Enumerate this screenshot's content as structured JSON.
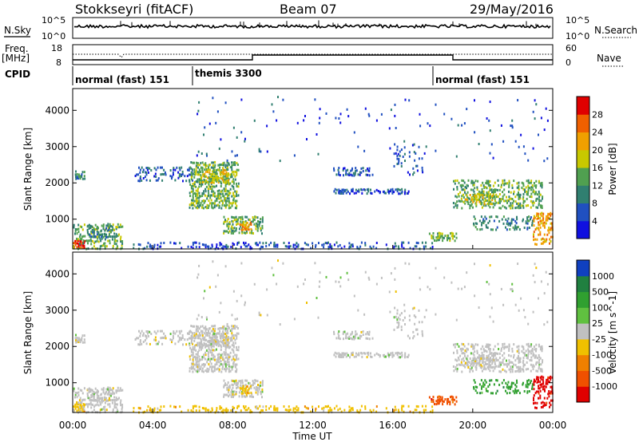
{
  "header": {
    "station": "Stokkseyri (fitACF)",
    "beam": "Beam 07",
    "date": "29/May/2016"
  },
  "nsky_panel": {
    "left_label": "N.Sky",
    "right_label": "N.Search",
    "y_ticks": [
      "10^5",
      "10^0"
    ],
    "right_ticks": [
      "10^5",
      "10^0"
    ]
  },
  "freq_panel": {
    "left_label_1": "Freq.",
    "left_label_2": "[MHz]",
    "right_label": "Nave",
    "y_ticks": [
      "18",
      "8"
    ],
    "right_ticks": [
      "60",
      "0"
    ]
  },
  "cpid": {
    "label": "CPID",
    "segments": [
      {
        "name": "normal (fast) 151",
        "start_h": 0,
        "end_h": 6
      },
      {
        "name": "themis 3300",
        "start_h": 6,
        "end_h": 18
      },
      {
        "name": "normal (fast) 151",
        "start_h": 18,
        "end_h": 24
      }
    ]
  },
  "chart_data": [
    {
      "type": "heatmap",
      "title": "Power",
      "ylabel": "Slant Range [km]",
      "xlim": [
        0,
        24
      ],
      "ylim": [
        180,
        4600
      ],
      "y_ticks": [
        "1000",
        "2000",
        "3000",
        "4000"
      ],
      "colorbar_label": "Power [dB]",
      "colorbar_ticks": [
        "4",
        "8",
        "12",
        "16",
        "20",
        "24",
        "28"
      ],
      "colorbar_colors": [
        "#1010e0",
        "#2050c0",
        "#307f70",
        "#50a050",
        "#c8c800",
        "#f0a000",
        "#f06000",
        "#e00000"
      ]
    },
    {
      "type": "heatmap",
      "title": "Velocity",
      "xlabel": "Time UT",
      "ylabel": "Slant Range [km]",
      "xlim": [
        0,
        24
      ],
      "ylim": [
        180,
        4600
      ],
      "y_ticks": [
        "1000",
        "2000",
        "3000",
        "4000"
      ],
      "x_ticks": [
        "00:00",
        "04:00",
        "08:00",
        "12:00",
        "16:00",
        "20:00",
        "00:00"
      ],
      "colorbar_label": "Velocity [m s^-1]",
      "colorbar_ticks": [
        "1000",
        "500",
        "100",
        "25",
        "-25",
        "-100",
        "-500",
        "-1000"
      ],
      "colorbar_colors": [
        "#1040c0",
        "#208040",
        "#30a030",
        "#60c040",
        "#c0c0c0",
        "#f0c000",
        "#f08000",
        "#f05000",
        "#e00000"
      ]
    }
  ]
}
